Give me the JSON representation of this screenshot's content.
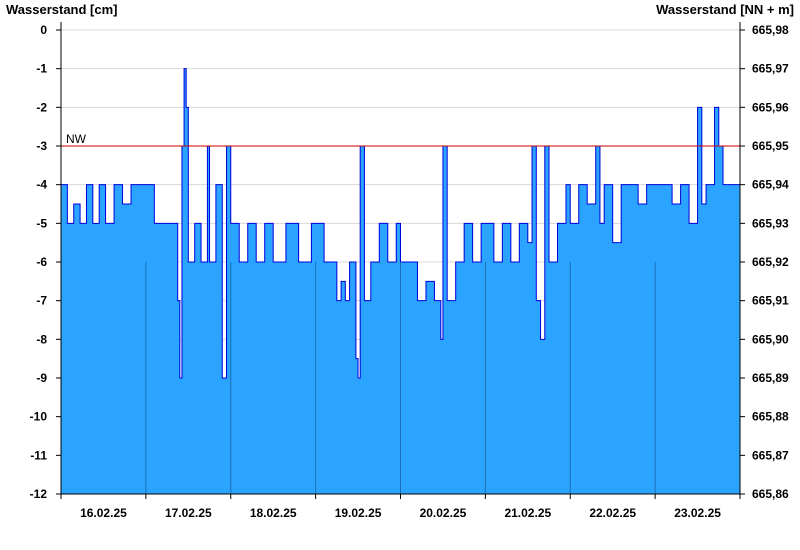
{
  "chart_data": {
    "type": "area",
    "ylabel_left": "Wasserstand [cm]",
    "ylabel_right": "Wasserstand [NN + m]",
    "ylim": [
      -12,
      0
    ],
    "yticks_left": [
      "0",
      "-1",
      "-2",
      "-3",
      "-4",
      "-5",
      "-6",
      "-7",
      "-8",
      "-9",
      "-10",
      "-11",
      "-12"
    ],
    "yticks_right": [
      "665,98",
      "665,97",
      "665,96",
      "665,95",
      "665,94",
      "665,93",
      "665,92",
      "665,91",
      "665,90",
      "665,89",
      "665,88",
      "665,87",
      "665,86"
    ],
    "x_categories": [
      "16.02.25",
      "17.02.25",
      "18.02.25",
      "19.02.25",
      "20.02.25",
      "21.02.25",
      "22.02.25",
      "23.02.25"
    ],
    "threshold": {
      "label": "NW",
      "value": -3,
      "color": "#cc0000"
    },
    "fill_color": "#2aa4ff",
    "line_color": "#0000dd",
    "grid": true,
    "series": [
      {
        "values": [
          [
            0.0,
            -4
          ],
          [
            0.15,
            -5
          ],
          [
            0.3,
            -4.5
          ],
          [
            0.45,
            -5
          ],
          [
            0.6,
            -4
          ],
          [
            0.75,
            -5
          ],
          [
            0.9,
            -4
          ],
          [
            1.05,
            -5
          ],
          [
            1.25,
            -4
          ],
          [
            1.45,
            -4.5
          ],
          [
            1.65,
            -4
          ],
          [
            1.85,
            -4
          ],
          [
            2.0,
            -4
          ],
          [
            2.2,
            -5
          ],
          [
            2.4,
            -5
          ],
          [
            2.6,
            -5
          ],
          [
            2.75,
            -7
          ],
          [
            2.8,
            -9
          ],
          [
            2.85,
            -3
          ],
          [
            2.9,
            -1
          ],
          [
            2.95,
            -2
          ],
          [
            3.0,
            -6
          ],
          [
            3.15,
            -5
          ],
          [
            3.3,
            -6
          ],
          [
            3.45,
            -3
          ],
          [
            3.5,
            -6
          ],
          [
            3.65,
            -4
          ],
          [
            3.8,
            -9
          ],
          [
            3.9,
            -3
          ],
          [
            4.0,
            -5
          ],
          [
            4.2,
            -6
          ],
          [
            4.4,
            -5
          ],
          [
            4.6,
            -6
          ],
          [
            4.8,
            -5
          ],
          [
            5.0,
            -6
          ],
          [
            5.3,
            -5
          ],
          [
            5.6,
            -6
          ],
          [
            5.9,
            -5
          ],
          [
            6.0,
            -5
          ],
          [
            6.2,
            -6
          ],
          [
            6.4,
            -6
          ],
          [
            6.5,
            -7
          ],
          [
            6.6,
            -6.5
          ],
          [
            6.7,
            -7
          ],
          [
            6.8,
            -6
          ],
          [
            6.95,
            -8.5
          ],
          [
            7.0,
            -9
          ],
          [
            7.05,
            -3
          ],
          [
            7.15,
            -7
          ],
          [
            7.3,
            -6
          ],
          [
            7.5,
            -5
          ],
          [
            7.7,
            -6
          ],
          [
            7.9,
            -5
          ],
          [
            8.0,
            -6
          ],
          [
            8.2,
            -6
          ],
          [
            8.4,
            -7
          ],
          [
            8.6,
            -6.5
          ],
          [
            8.8,
            -7
          ],
          [
            8.95,
            -8
          ],
          [
            9.0,
            -3
          ],
          [
            9.1,
            -7
          ],
          [
            9.3,
            -6
          ],
          [
            9.5,
            -5
          ],
          [
            9.7,
            -6
          ],
          [
            9.9,
            -5
          ],
          [
            10.0,
            -5
          ],
          [
            10.2,
            -6
          ],
          [
            10.4,
            -5
          ],
          [
            10.6,
            -6
          ],
          [
            10.8,
            -5
          ],
          [
            11.0,
            -5.5
          ],
          [
            11.1,
            -3
          ],
          [
            11.2,
            -7
          ],
          [
            11.3,
            -8
          ],
          [
            11.4,
            -3
          ],
          [
            11.5,
            -6
          ],
          [
            11.7,
            -5
          ],
          [
            11.9,
            -4
          ],
          [
            12.0,
            -5
          ],
          [
            12.2,
            -4
          ],
          [
            12.4,
            -4.5
          ],
          [
            12.6,
            -3
          ],
          [
            12.7,
            -5
          ],
          [
            12.8,
            -4
          ],
          [
            13.0,
            -5.5
          ],
          [
            13.2,
            -4
          ],
          [
            13.4,
            -4
          ],
          [
            13.6,
            -4.5
          ],
          [
            13.8,
            -4
          ],
          [
            14.0,
            -4
          ],
          [
            14.2,
            -4
          ],
          [
            14.4,
            -4.5
          ],
          [
            14.6,
            -4
          ],
          [
            14.8,
            -5
          ],
          [
            15.0,
            -2
          ],
          [
            15.1,
            -4.5
          ],
          [
            15.2,
            -4
          ],
          [
            15.4,
            -2
          ],
          [
            15.5,
            -3
          ],
          [
            15.6,
            -4
          ],
          [
            15.8,
            -4
          ],
          [
            16.0,
            -4
          ]
        ]
      }
    ]
  }
}
